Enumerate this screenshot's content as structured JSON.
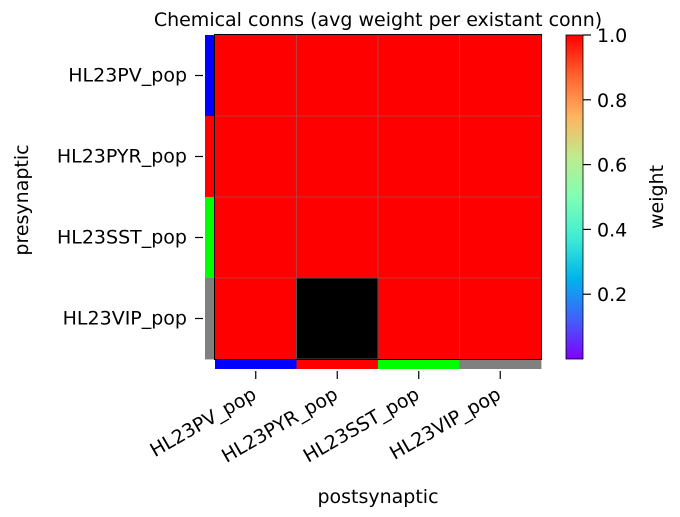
{
  "chart_data": {
    "type": "heatmap",
    "title": "Chemical conns (avg weight per existant conn)",
    "xlabel": "postsynaptic",
    "ylabel": "presynaptic",
    "x_categories": [
      "HL23PV_pop",
      "HL23PYR_pop",
      "HL23SST_pop",
      "HL23VIP_pop"
    ],
    "y_categories": [
      "HL23PV_pop",
      "HL23PYR_pop",
      "HL23SST_pop",
      "HL23VIP_pop"
    ],
    "values": [
      [
        1.0,
        1.0,
        1.0,
        1.0
      ],
      [
        1.0,
        1.0,
        1.0,
        1.0
      ],
      [
        1.0,
        1.0,
        1.0,
        1.0
      ],
      [
        1.0,
        null,
        1.0,
        1.0
      ]
    ],
    "missing_color": "#000000",
    "population_colors": [
      "#0000ff",
      "#ff0000",
      "#00ff00",
      "#808080"
    ],
    "colorbar": {
      "label": "weight",
      "colormap": "rainbow",
      "ticks": [
        "0.2",
        "0.4",
        "0.6",
        "0.8",
        "1.0"
      ],
      "vmin": 0.0,
      "vmax": 1.0
    },
    "grid": true
  }
}
